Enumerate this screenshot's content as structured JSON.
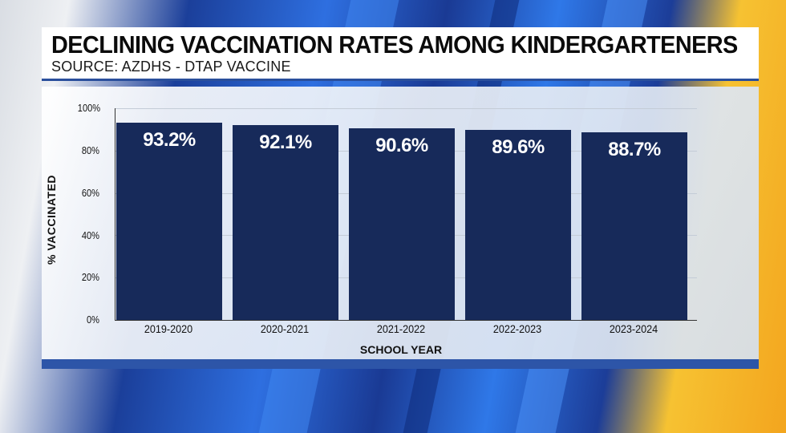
{
  "header": {
    "title": "DECLINING VACCINATION RATES AMONG KINDERGARTENERS",
    "subtitle": "SOURCE: AZDHS - DTAP VACCINE"
  },
  "colors": {
    "bar": "#172a5a",
    "bar_label": "#ffffff",
    "accent_blue": "#2d55a8",
    "accent_yellow": "#f6c232"
  },
  "chart_data": {
    "type": "bar",
    "title": "DECLINING VACCINATION RATES AMONG KINDERGARTENERS",
    "subtitle": "SOURCE: AZDHS - DTAP VACCINE",
    "categories": [
      "2019-2020",
      "2020-2021",
      "2021-2022",
      "2022-2023",
      "2023-2024"
    ],
    "values": [
      93.2,
      92.1,
      90.6,
      89.6,
      88.7
    ],
    "value_labels": [
      "93.2%",
      "92.1%",
      "90.6%",
      "89.6%",
      "88.7%"
    ],
    "xlabel": "SCHOOL YEAR",
    "ylabel": "% VACCINATED",
    "ylim": [
      0,
      100
    ],
    "yticks": [
      "0%",
      "20%",
      "40%",
      "60%",
      "80%",
      "100%"
    ],
    "grid": true,
    "legend": null
  }
}
